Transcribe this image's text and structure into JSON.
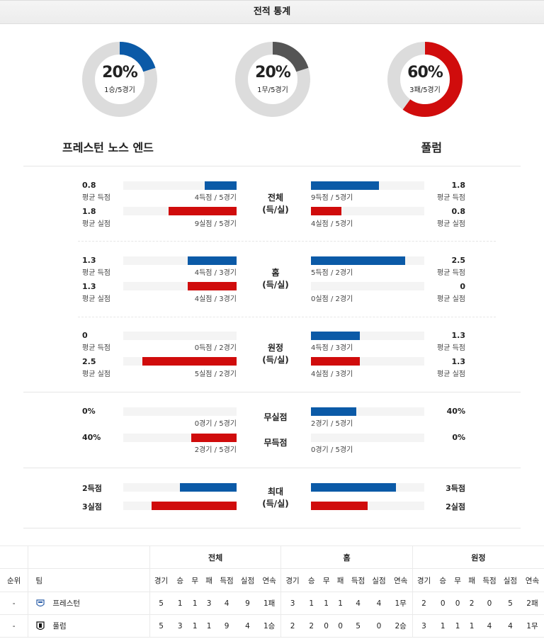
{
  "title": "전적 통계",
  "donuts": [
    {
      "pct_text": "20%",
      "sub": "1승/5경기",
      "fraction": 0.2,
      "color": "#0b5aa7"
    },
    {
      "pct_text": "20%",
      "sub": "1무/5경기",
      "fraction": 0.2,
      "color": "#555555"
    },
    {
      "pct_text": "60%",
      "sub": "3패/5경기",
      "fraction": 0.6,
      "color": "#d00c0c"
    }
  ],
  "teams": {
    "home": "프레스턴 노스 엔드",
    "away": "풀럼"
  },
  "sections": {
    "total": {
      "label1": "전체",
      "label2": "(득/실)",
      "home_scored": {
        "value": "0.8",
        "label": "평균 득점",
        "caption": "4득점 / 5경기",
        "fraction": 0.28
      },
      "home_conceded": {
        "value": "1.8",
        "label": "평균 실점",
        "caption": "9실점 / 5경기",
        "fraction": 0.6
      },
      "away_scored": {
        "value": "1.8",
        "label": "평균 득점",
        "caption": "9득점 / 5경기",
        "fraction": 0.6
      },
      "away_conceded": {
        "value": "0.8",
        "label": "평균 실점",
        "caption": "4실점 / 5경기",
        "fraction": 0.27
      }
    },
    "home": {
      "label1": "홈",
      "label2": "(득/실)",
      "home_scored": {
        "value": "1.3",
        "label": "평균 득점",
        "caption": "4득점 / 3경기",
        "fraction": 0.43
      },
      "home_conceded": {
        "value": "1.3",
        "label": "평균 실점",
        "caption": "4실점 / 3경기",
        "fraction": 0.43
      },
      "away_scored": {
        "value": "2.5",
        "label": "평균 득점",
        "caption": "5득점 / 2경기",
        "fraction": 0.83
      },
      "away_conceded": {
        "value": "0",
        "label": "평균 실점",
        "caption": "0실점 / 2경기",
        "fraction": 0
      }
    },
    "away": {
      "label1": "원정",
      "label2": "(득/실)",
      "home_scored": {
        "value": "0",
        "label": "평균 득점",
        "caption": "0득점 / 2경기",
        "fraction": 0
      },
      "home_conceded": {
        "value": "2.5",
        "label": "평균 실점",
        "caption": "5실점 / 2경기",
        "fraction": 0.83
      },
      "away_scored": {
        "value": "1.3",
        "label": "평균 득점",
        "caption": "4득점 / 3경기",
        "fraction": 0.43
      },
      "away_conceded": {
        "value": "1.3",
        "label": "평균 실점",
        "caption": "4실점 / 3경기",
        "fraction": 0.43
      }
    }
  },
  "clean": {
    "label_clean_sheet": "무실점",
    "label_no_goal": "무득점",
    "home_clean": {
      "value": "0%",
      "caption": "0경기 / 5경기",
      "fraction": 0
    },
    "home_nogoal": {
      "value": "40%",
      "caption": "2경기 / 5경기",
      "fraction": 0.4
    },
    "away_clean": {
      "value": "40%",
      "caption": "2경기 / 5경기",
      "fraction": 0.4
    },
    "away_nogoal": {
      "value": "0%",
      "caption": "0경기 / 5경기",
      "fraction": 0
    }
  },
  "max": {
    "label1": "최대",
    "label2": "(득/실)",
    "home_scored": {
      "value": "2득점",
      "fraction": 0.5
    },
    "home_conceded": {
      "value": "3실점",
      "fraction": 0.75
    },
    "away_scored": {
      "value": "3득점",
      "fraction": 0.75
    },
    "away_conceded": {
      "value": "2실점",
      "fraction": 0.5
    }
  },
  "standings": {
    "groups": [
      "전체",
      "홈",
      "원정"
    ],
    "rank_header": "순위",
    "team_header": "팀",
    "cols": [
      "경기",
      "승",
      "무",
      "패",
      "득점",
      "실점",
      "연속"
    ],
    "rows": [
      {
        "rank": "-",
        "team": "프레스턴",
        "icon": "preston-crest-icon",
        "total": [
          "5",
          "1",
          "1",
          "3",
          "4",
          "9",
          "1패"
        ],
        "home": [
          "3",
          "1",
          "1",
          "1",
          "4",
          "4",
          "1무"
        ],
        "away": [
          "2",
          "0",
          "0",
          "2",
          "0",
          "5",
          "2패"
        ]
      },
      {
        "rank": "-",
        "team": "풀럼",
        "icon": "fulham-crest-icon",
        "total": [
          "5",
          "3",
          "1",
          "1",
          "9",
          "4",
          "1승"
        ],
        "home": [
          "2",
          "2",
          "0",
          "0",
          "5",
          "0",
          "2승"
        ],
        "away": [
          "3",
          "1",
          "1",
          "1",
          "4",
          "4",
          "1무"
        ]
      }
    ]
  }
}
